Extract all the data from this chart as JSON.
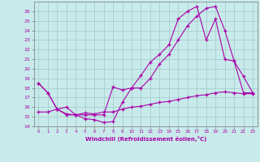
{
  "xlabel": "Windchill (Refroidissement éolien,°C)",
  "x_ticks": [
    0,
    1,
    2,
    3,
    4,
    5,
    6,
    7,
    8,
    9,
    10,
    11,
    12,
    13,
    14,
    15,
    16,
    17,
    18,
    19,
    20,
    21,
    22,
    23
  ],
  "ylim": [
    14,
    27
  ],
  "xlim": [
    -0.5,
    23.5
  ],
  "y_ticks": [
    14,
    15,
    16,
    17,
    18,
    19,
    20,
    21,
    22,
    23,
    24,
    25,
    26
  ],
  "bg_color": "#c8eaea",
  "grid_color": "#a0c8c8",
  "line_color": "#aa00aa",
  "series1_x": [
    0,
    1,
    2,
    3,
    4,
    5,
    6,
    7,
    8,
    9,
    10,
    11,
    12,
    13,
    14,
    15,
    16,
    17,
    18,
    19,
    20,
    21,
    22,
    23
  ],
  "series1_y": [
    18.5,
    17.5,
    15.8,
    15.3,
    15.2,
    14.8,
    14.7,
    14.4,
    14.5,
    16.5,
    18.0,
    18.0,
    19.0,
    20.5,
    21.5,
    23.0,
    24.5,
    25.5,
    26.3,
    26.5,
    24.0,
    20.8,
    19.2,
    17.5
  ],
  "series2_x": [
    0,
    1,
    2,
    3,
    4,
    5,
    6,
    7,
    8,
    9,
    10,
    11,
    12,
    13,
    14,
    15,
    16,
    17,
    18,
    19,
    20,
    21,
    22,
    23
  ],
  "series2_y": [
    18.5,
    17.5,
    15.8,
    15.2,
    15.2,
    15.2,
    15.2,
    15.2,
    18.1,
    17.8,
    18.0,
    19.3,
    20.7,
    21.5,
    22.5,
    25.2,
    26.0,
    26.5,
    23.0,
    25.2,
    21.0,
    20.8,
    17.5,
    17.5
  ],
  "series3_x": [
    0,
    1,
    2,
    3,
    4,
    5,
    6,
    7,
    8,
    9,
    10,
    11,
    12,
    13,
    14,
    15,
    16,
    17,
    18,
    19,
    20,
    21,
    22,
    23
  ],
  "series3_y": [
    15.5,
    15.5,
    15.8,
    16.0,
    15.2,
    15.4,
    15.3,
    15.5,
    15.5,
    15.8,
    16.0,
    16.1,
    16.3,
    16.5,
    16.6,
    16.8,
    17.0,
    17.2,
    17.3,
    17.5,
    17.6,
    17.5,
    17.4,
    17.4
  ]
}
